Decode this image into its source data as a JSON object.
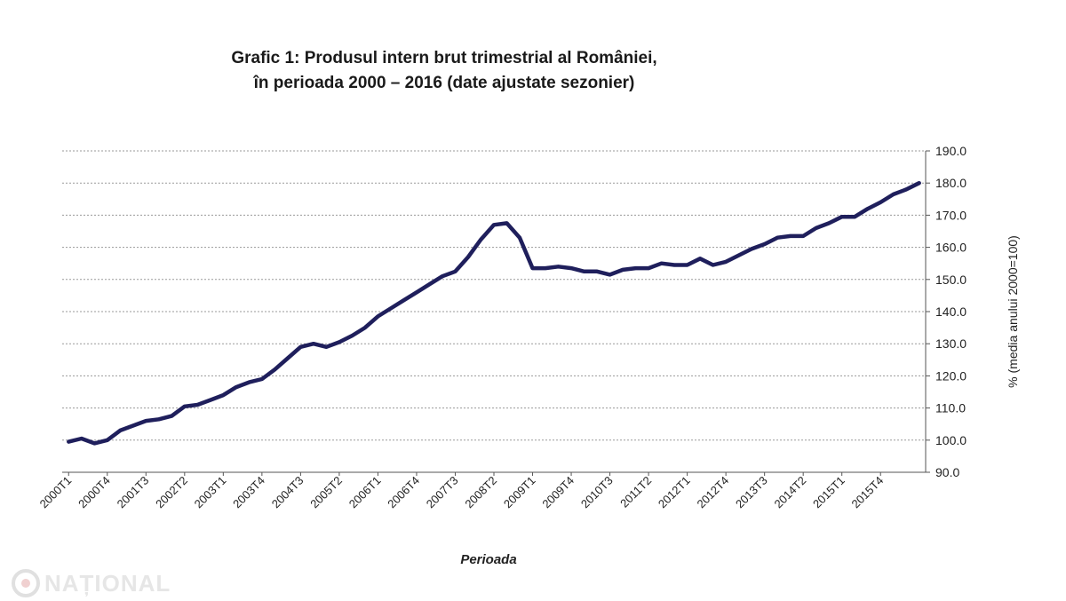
{
  "title_line1": "Grafic 1: Produsul intern brut trimestrial al României,",
  "title_line2": "în perioada 2000 – 2016 (date ajustate sezonier)",
  "watermark": "NAȚIONAL",
  "colors": {
    "line": "#1f1f5c",
    "grid": "#9a9a9a",
    "axis": "#555555",
    "watermark": "#e6e6e6"
  },
  "chart_data": {
    "type": "line",
    "xlabel": "Perioada",
    "ylabel": "% (media anului 2000=100)",
    "yaxis_position": "right",
    "ylim": [
      90,
      190
    ],
    "yticks": [
      "90.0",
      "100.0",
      "110.0",
      "120.0",
      "130.0",
      "140.0",
      "150.0",
      "160.0",
      "170.0",
      "180.0",
      "190.0"
    ],
    "grid": true,
    "categories": [
      "2000T1",
      "2000T2",
      "2000T3",
      "2000T4",
      "2001T1",
      "2001T2",
      "2001T3",
      "2001T4",
      "2002T1",
      "2002T2",
      "2002T3",
      "2002T4",
      "2003T1",
      "2003T2",
      "2003T3",
      "2003T4",
      "2004T1",
      "2004T2",
      "2004T3",
      "2004T4",
      "2005T1",
      "2005T2",
      "2005T3",
      "2005T4",
      "2006T1",
      "2006T2",
      "2006T3",
      "2006T4",
      "2007T1",
      "2007T2",
      "2007T3",
      "2007T4",
      "2008T1",
      "2008T2",
      "2008T3",
      "2008T4",
      "2009T1",
      "2009T2",
      "2009T3",
      "2009T4",
      "2010T1",
      "2010T2",
      "2010T3",
      "2010T4",
      "2011T1",
      "2011T2",
      "2011T3",
      "2011T4",
      "2012T1",
      "2012T2",
      "2012T3",
      "2012T4",
      "2013T1",
      "2013T2",
      "2013T3",
      "2013T4",
      "2014T1",
      "2014T2",
      "2014T3",
      "2014T4",
      "2015T1",
      "2015T2",
      "2015T3",
      "2015T4",
      "2016T1",
      "2016T2",
      "2016T3"
    ],
    "x_tick_labels": [
      "2000T1",
      "2000T4",
      "2001T3",
      "2002T2",
      "2003T1",
      "2003T4",
      "2004T3",
      "2005T2",
      "2006T1",
      "2006T4",
      "2007T3",
      "2008T2",
      "2009T1",
      "2009T4",
      "2010T3",
      "2011T2",
      "2012T1",
      "2012T4",
      "2013T3",
      "2014T2",
      "2015T1",
      "2015T4"
    ],
    "series": [
      {
        "values": [
          99.5,
          100.5,
          99.0,
          100.0,
          103.0,
          104.5,
          106.0,
          106.5,
          107.5,
          110.5,
          111.0,
          112.5,
          114.0,
          116.5,
          118.0,
          119.0,
          122.0,
          125.5,
          129.0,
          130.0,
          129.0,
          130.5,
          132.5,
          135.0,
          138.5,
          141.0,
          143.5,
          146.0,
          148.5,
          151.0,
          152.5,
          157.0,
          162.5,
          167.0,
          167.5,
          163.0,
          153.5,
          153.5,
          154.0,
          153.5,
          152.5,
          152.5,
          151.5,
          153.0,
          153.5,
          153.5,
          155.0,
          154.5,
          154.5,
          156.5,
          154.5,
          155.5,
          157.5,
          159.5,
          161.0,
          163.0,
          163.5,
          163.5,
          166.0,
          167.5,
          169.5,
          169.5,
          172.0,
          174.0,
          176.5,
          178.0,
          180.0
        ]
      }
    ]
  }
}
